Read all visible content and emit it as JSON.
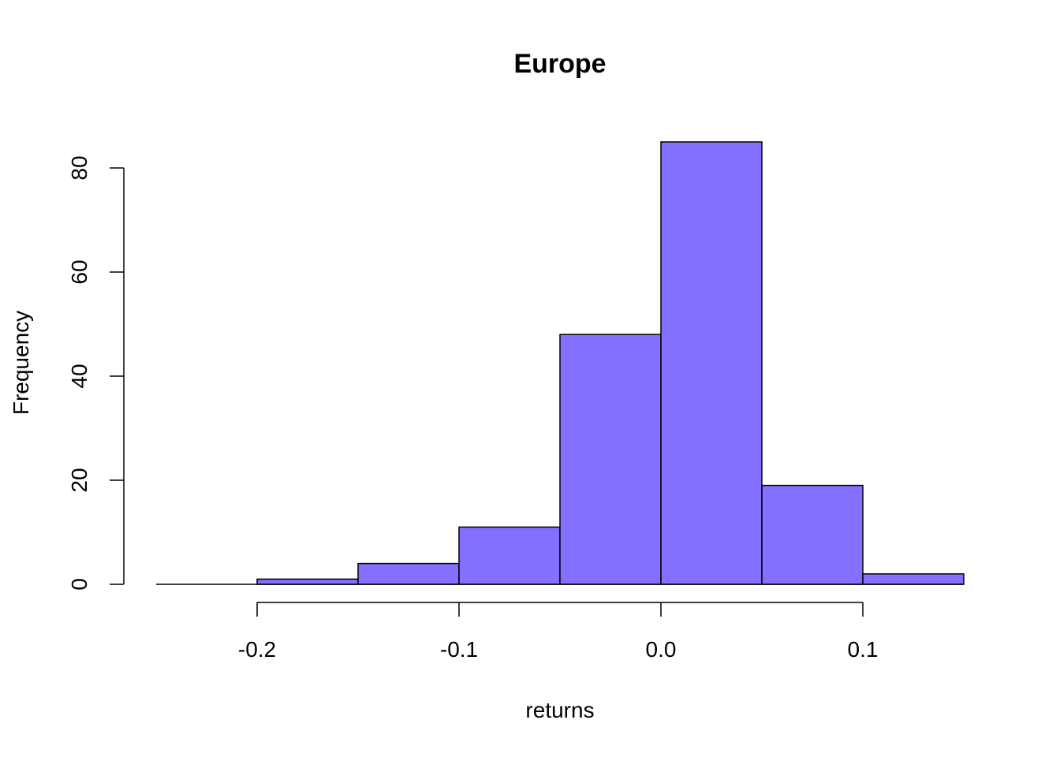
{
  "chart_data": {
    "type": "bar",
    "title": "Europe",
    "xlabel": "returns",
    "ylabel": "Frequency",
    "bin_edges": [
      -0.25,
      -0.2,
      -0.15,
      -0.1,
      -0.05,
      0.0,
      0.05,
      0.1,
      0.15
    ],
    "values": [
      0,
      1,
      4,
      11,
      48,
      85,
      19,
      2
    ],
    "xlim": [
      -0.25,
      0.15
    ],
    "ylim": [
      0,
      85
    ],
    "x_ticks": [
      {
        "value": -0.2,
        "label": "-0.2"
      },
      {
        "value": -0.1,
        "label": "-0.1"
      },
      {
        "value": 0.0,
        "label": "0.0"
      },
      {
        "value": 0.1,
        "label": "0.1"
      }
    ],
    "y_ticks": [
      {
        "value": 0,
        "label": "0"
      },
      {
        "value": 20,
        "label": "20"
      },
      {
        "value": 40,
        "label": "40"
      },
      {
        "value": 60,
        "label": "60"
      },
      {
        "value": 80,
        "label": "80"
      }
    ],
    "bar_color": "#8470FF",
    "grid": false,
    "legend": "none"
  }
}
